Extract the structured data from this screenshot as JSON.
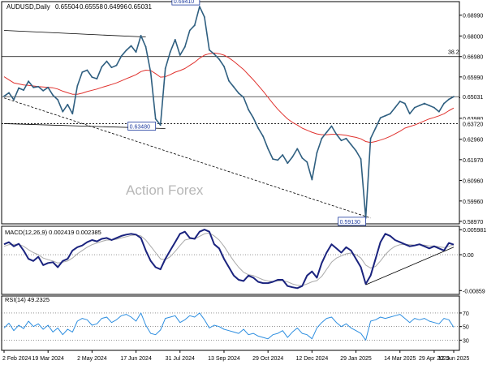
{
  "chart_data": [
    {
      "type": "line",
      "panel": "price",
      "title": "AUDUSD,Daily",
      "ohlc_header": [
        "0.65504",
        "0.65558",
        "0.64996",
        "0.65031"
      ],
      "watermark": "Action Forex",
      "yticks": [
        0.6899,
        0.6798,
        0.6698,
        0.6599,
        0.6498,
        0.6398,
        0.6296,
        0.6197,
        0.6096,
        0.5996,
        0.5897
      ],
      "ytick_labels": [
        "0.68990",
        "0.68000",
        "0.66980",
        "0.65990",
        "0.64980",
        "0.63980",
        "0.62960",
        "0.61970",
        "0.60960",
        "0.59960",
        "0.58970"
      ],
      "ylim": [
        0.5885,
        0.6965
      ],
      "last_price": 0.65031,
      "last_price_label": "0.65031",
      "support_level": 0.6372,
      "support_label": "0.63720",
      "fib_level": 0.6698,
      "fib_label": "38.2",
      "annotations": [
        {
          "label": "0.69410",
          "value": 0.6941,
          "i": 40
        },
        {
          "label": "0.63480",
          "value": 0.6348,
          "i": 31
        },
        {
          "label": "0.59130",
          "value": 0.5913,
          "i": 74
        }
      ],
      "series": [
        {
          "key": "price",
          "color": "#2f5f80",
          "values": [
            0.6505,
            0.6522,
            0.6488,
            0.6545,
            0.6535,
            0.6578,
            0.6548,
            0.6552,
            0.6532,
            0.6548,
            0.651,
            0.6488,
            0.643,
            0.6465,
            0.642,
            0.6555,
            0.6622,
            0.6632,
            0.6598,
            0.659,
            0.6648,
            0.6675,
            0.6645,
            0.6655,
            0.67,
            0.6728,
            0.675,
            0.672,
            0.68,
            0.6745,
            0.662,
            0.6395,
            0.6365,
            0.664,
            0.672,
            0.678,
            0.6705,
            0.6745,
            0.6825,
            0.685,
            0.6941,
            0.689,
            0.673,
            0.671,
            0.6685,
            0.665,
            0.658,
            0.655,
            0.652,
            0.65,
            0.644,
            0.64,
            0.635,
            0.631,
            0.625,
            0.62,
            0.6195,
            0.622,
            0.618,
            0.621,
            0.625,
            0.6205,
            0.6185,
            0.61,
            0.623,
            0.63,
            0.633,
            0.636,
            0.632,
            0.629,
            0.63,
            0.627,
            0.624,
            0.62,
            0.5913,
            0.63,
            0.635,
            0.64,
            0.641,
            0.642,
            0.645,
            0.648,
            0.647,
            0.642,
            0.645,
            0.646,
            0.647,
            0.646,
            0.645,
            0.643,
            0.647,
            0.649,
            0.6503
          ]
        },
        {
          "key": "ma",
          "color": "#e0322e",
          "values": [
            0.66,
            0.6585,
            0.657,
            0.6565,
            0.656,
            0.6558,
            0.6555,
            0.6552,
            0.655,
            0.6548,
            0.6546,
            0.654,
            0.653,
            0.6522,
            0.6515,
            0.6515,
            0.652,
            0.6528,
            0.6534,
            0.654,
            0.6548,
            0.6555,
            0.6562,
            0.657,
            0.658,
            0.659,
            0.66,
            0.661,
            0.6625,
            0.6632,
            0.663,
            0.6615,
            0.6598,
            0.66,
            0.661,
            0.6622,
            0.663,
            0.664,
            0.6655,
            0.667,
            0.669,
            0.6705,
            0.6712,
            0.6715,
            0.6712,
            0.6705,
            0.6692,
            0.6675,
            0.6655,
            0.6635,
            0.661,
            0.6585,
            0.6558,
            0.653,
            0.65,
            0.647,
            0.6442,
            0.6418,
            0.6395,
            0.6378,
            0.6365,
            0.635,
            0.634,
            0.633,
            0.6322,
            0.6318,
            0.6318,
            0.632,
            0.632,
            0.6318,
            0.6315,
            0.631,
            0.6305,
            0.6298,
            0.6285,
            0.628,
            0.6285,
            0.6292,
            0.63,
            0.631,
            0.6322,
            0.6335,
            0.635,
            0.6358,
            0.6365,
            0.6375,
            0.6385,
            0.6395,
            0.6402,
            0.641,
            0.642,
            0.6435,
            0.6448
          ]
        }
      ],
      "trendlines": [
        {
          "style": "solid",
          "p1": {
            "i": 0,
            "v": 0.6825
          },
          "p2": {
            "i": 29,
            "v": 0.6793
          }
        },
        {
          "style": "solid",
          "p1": {
            "i": 0,
            "v": 0.6372
          },
          "p2": {
            "i": 33,
            "v": 0.6348
          }
        },
        {
          "style": "dashed",
          "p1": {
            "i": 0,
            "v": 0.6497
          },
          "p2": {
            "i": 75,
            "v": 0.5913
          }
        }
      ]
    },
    {
      "type": "line",
      "panel": "macd",
      "title": "MACD(12,26,9) 0.002419 0.002385",
      "ylim": [
        -0.0095,
        0.0068
      ],
      "ytick_labels": [
        "0.005981",
        "0.00",
        "-0.00859"
      ],
      "yticks": [
        0.005981,
        0,
        -0.00859
      ],
      "series": [
        {
          "key": "macd",
          "color": "#1a237e",
          "values": [
            0.0025,
            0.003,
            0.002,
            0.0026,
            0.001,
            -0.001,
            -0.0015,
            -0.0005,
            -0.0025,
            -0.002,
            -0.0018,
            -0.003,
            -0.0015,
            -0.001,
            0.001,
            0.0018,
            0.0022,
            0.003,
            0.0035,
            0.0032,
            0.0038,
            0.004,
            0.0035,
            0.004,
            0.0045,
            0.0048,
            0.005,
            0.0048,
            0.004,
            0.001,
            -0.0015,
            -0.003,
            -0.0035,
            -0.001,
            0.001,
            0.003,
            0.005,
            0.0055,
            0.004,
            0.0038,
            0.0055,
            0.006,
            0.0055,
            0.0025,
            0.0015,
            -0.001,
            -0.003,
            -0.005,
            -0.006,
            -0.0063,
            -0.005,
            -0.0055,
            -0.0065,
            -0.0068,
            -0.0068,
            -0.0065,
            -0.006,
            -0.006,
            -0.0075,
            -0.0078,
            -0.008,
            -0.0075,
            -0.005,
            -0.004,
            -0.0055,
            -0.002,
            0.0005,
            0.0025,
            0.0015,
            0.0005,
            0.0018,
            0.001,
            -0.001,
            -0.003,
            -0.007,
            -0.005,
            -0.001,
            0.003,
            0.005,
            0.0045,
            0.0035,
            0.003,
            0.0025,
            0.002,
            0.0022,
            0.0025,
            0.002,
            0.0015,
            0.002,
            0.0015,
            0.001,
            0.0028,
            0.0024
          ]
        },
        {
          "key": "signal",
          "color": "#a9a9a9",
          "values": [
            0.002,
            0.0024,
            0.0025,
            0.0025,
            0.002,
            0.0012,
            0.0005,
            0.0,
            -0.0008,
            -0.0012,
            -0.0015,
            -0.002,
            -0.0018,
            -0.0015,
            -0.0008,
            0.0002,
            0.001,
            0.0018,
            0.0024,
            0.0028,
            0.0032,
            0.0035,
            0.0035,
            0.0037,
            0.004,
            0.0043,
            0.0046,
            0.0047,
            0.0045,
            0.0035,
            0.002,
            0.0005,
            -0.001,
            -0.0012,
            -0.0005,
            0.0008,
            0.0022,
            0.0035,
            0.0038,
            0.0038,
            0.0044,
            0.005,
            0.0052,
            0.0045,
            0.0035,
            0.002,
            0.0002,
            -0.0015,
            -0.003,
            -0.0042,
            -0.0048,
            -0.005,
            -0.0055,
            -0.006,
            -0.0063,
            -0.0064,
            -0.0063,
            -0.0062,
            -0.0065,
            -0.007,
            -0.0073,
            -0.0074,
            -0.007,
            -0.0065,
            -0.0062,
            -0.0052,
            -0.0035,
            -0.0018,
            -0.0008,
            -0.0003,
            0.0002,
            0.0004,
            0.0,
            -0.0008,
            -0.0025,
            -0.0032,
            -0.0028,
            -0.0015,
            0.0,
            0.0012,
            0.002,
            0.0024,
            0.0025,
            0.0024,
            0.0023,
            0.0024,
            0.0023,
            0.0021,
            0.0021,
            0.0019,
            0.0017,
            0.002,
            0.0024
          ]
        }
      ],
      "trendlines": [
        {
          "style": "solid",
          "p1": {
            "i": 74,
            "v": -0.0072
          },
          "p2": {
            "i": 92,
            "v": 0.0018
          }
        }
      ]
    },
    {
      "type": "line",
      "panel": "rsi",
      "title": "RSI(14) 49.2325",
      "ylim": [
        15,
        95
      ],
      "yticks": [
        70,
        50,
        30
      ],
      "ytick_labels": [
        "70",
        "50",
        "30"
      ],
      "series": [
        {
          "key": "rsi",
          "color": "#2d8ee0",
          "values": [
            48,
            55,
            44,
            52,
            47,
            58,
            50,
            54,
            46,
            52,
            42,
            48,
            38,
            46,
            42,
            58,
            62,
            60,
            52,
            54,
            62,
            64,
            56,
            60,
            66,
            68,
            64,
            58,
            70,
            52,
            40,
            38,
            45,
            62,
            64,
            66,
            56,
            60,
            66,
            64,
            70,
            60,
            48,
            52,
            50,
            46,
            44,
            42,
            40,
            46,
            38,
            40,
            36,
            34,
            32,
            38,
            40,
            44,
            34,
            42,
            48,
            40,
            38,
            32,
            48,
            56,
            62,
            64,
            56,
            50,
            54,
            48,
            44,
            40,
            30,
            58,
            60,
            64,
            62,
            64,
            66,
            68,
            62,
            56,
            62,
            60,
            62,
            58,
            56,
            54,
            62,
            60,
            49
          ]
        }
      ]
    }
  ],
  "x_axis": {
    "tick_labels": [
      "2 Feb 2024",
      "19 Mar 2024",
      "2 May 2024",
      "17 Jun 2024",
      "31 Jul 2024",
      "13 Sep 2024",
      "29 Oct 2024",
      "12 Dec 2024",
      "29 Jan 2025",
      "14 Mar 2025",
      "29 Apr 2025",
      "12 Jun 2025"
    ],
    "tick_index": [
      0,
      9,
      18,
      27,
      36,
      45,
      54,
      63,
      72,
      81,
      88,
      92
    ]
  },
  "colors": {
    "frame": "#000000",
    "grid_dotted": "#888888",
    "label_box_border": "#1c3a9e",
    "label_box_text": "#1c3a9e"
  }
}
